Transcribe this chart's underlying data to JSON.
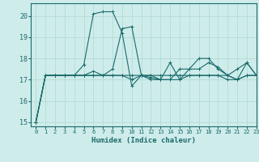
{
  "title": "",
  "xlabel": "Humidex (Indice chaleur)",
  "ylabel": "",
  "xlim": [
    -0.5,
    23
  ],
  "ylim": [
    14.8,
    20.6
  ],
  "yticks": [
    15,
    16,
    17,
    18,
    19,
    20
  ],
  "xticks": [
    0,
    1,
    2,
    3,
    4,
    5,
    6,
    7,
    8,
    9,
    10,
    11,
    12,
    13,
    14,
    15,
    16,
    17,
    18,
    19,
    20,
    21,
    22,
    23
  ],
  "bg_color": "#ceecea",
  "line_color": "#1a6b6b",
  "grid_color": "#aed8d4",
  "lines": [
    [
      15.0,
      17.2,
      17.2,
      17.2,
      17.2,
      17.7,
      20.1,
      20.2,
      20.2,
      19.2,
      16.7,
      17.2,
      17.1,
      17.0,
      17.8,
      17.0,
      17.5,
      18.0,
      18.0,
      17.5,
      17.2,
      17.0,
      17.8,
      17.2
    ],
    [
      15.0,
      17.2,
      17.2,
      17.2,
      17.2,
      17.2,
      17.4,
      17.2,
      17.5,
      19.4,
      19.5,
      17.2,
      17.2,
      17.0,
      17.0,
      17.5,
      17.5,
      17.5,
      17.8,
      17.6,
      17.2,
      17.5,
      17.8,
      17.2
    ],
    [
      15.0,
      17.2,
      17.2,
      17.2,
      17.2,
      17.2,
      17.2,
      17.2,
      17.2,
      17.2,
      17.2,
      17.2,
      17.0,
      17.0,
      17.0,
      17.0,
      17.2,
      17.2,
      17.2,
      17.2,
      17.0,
      17.0,
      17.2,
      17.2
    ],
    [
      15.0,
      17.2,
      17.2,
      17.2,
      17.2,
      17.2,
      17.2,
      17.2,
      17.2,
      17.2,
      17.0,
      17.2,
      17.2,
      17.2,
      17.2,
      17.2,
      17.2,
      17.2,
      17.2,
      17.2,
      17.2,
      17.0,
      17.2,
      17.2
    ]
  ],
  "marker": "+",
  "marker_size": 3,
  "linewidth": 0.8
}
